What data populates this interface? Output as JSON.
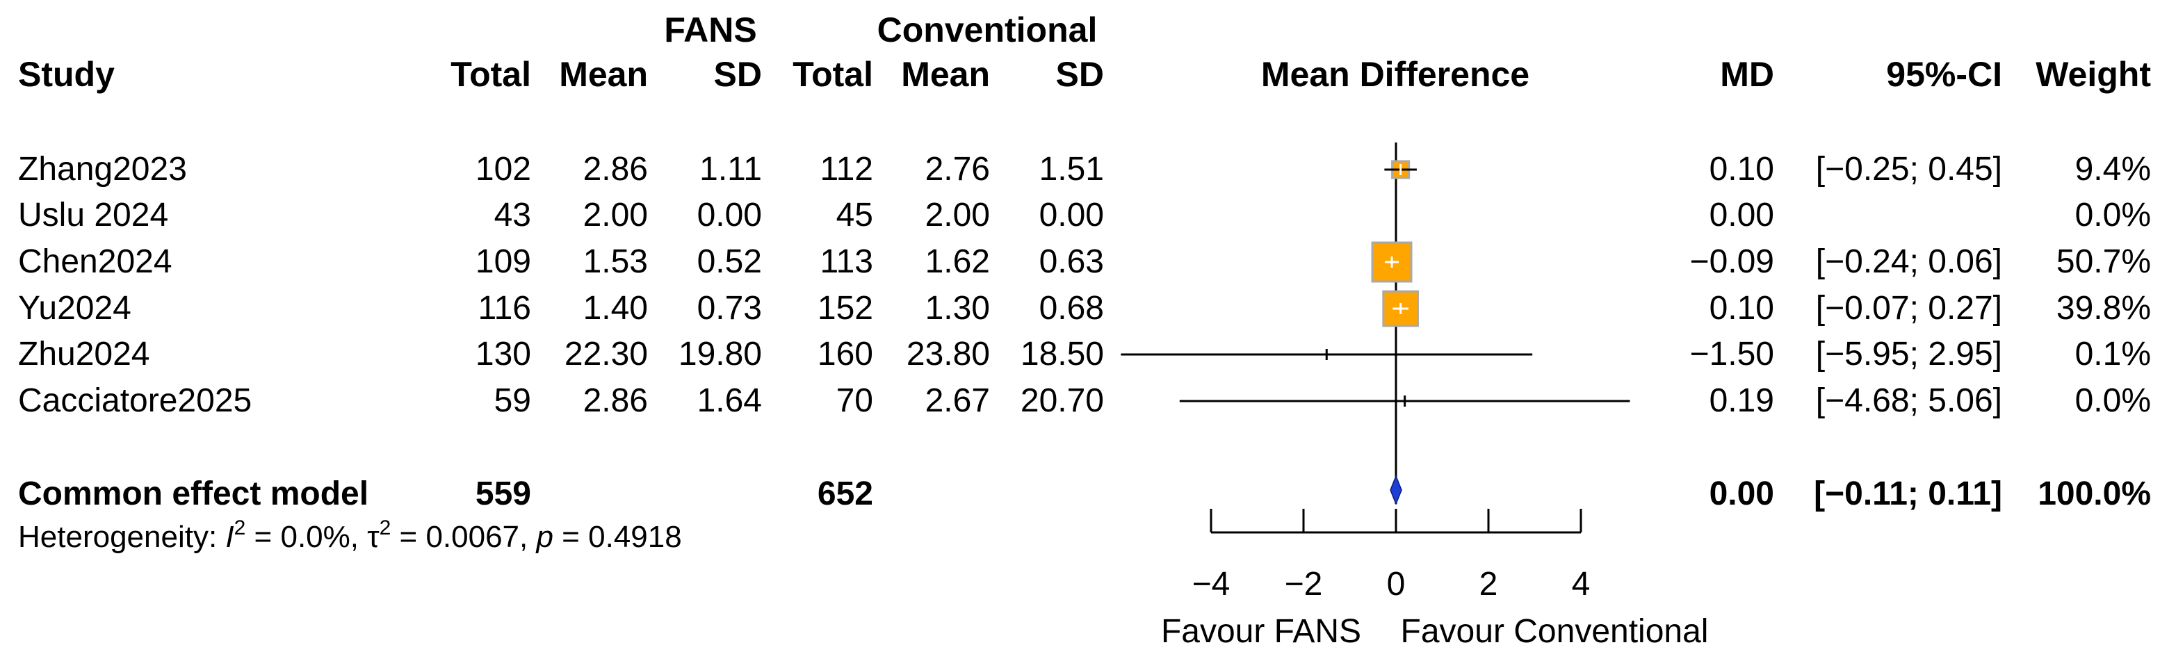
{
  "chart_data": {
    "type": "forest",
    "header": {
      "group1": "FANS",
      "group2": "Conventional",
      "study": "Study",
      "total": "Total",
      "mean": "Mean",
      "sd": "SD",
      "effect": "Mean Difference",
      "md": "MD",
      "ci": "95%-CI",
      "weight": "Weight"
    },
    "studies": [
      {
        "name": "Zhang2023",
        "n1": "102",
        "m1": "2.86",
        "sd1": "1.11",
        "n2": "112",
        "m2": "2.76",
        "sd2": "1.51",
        "md_text": "0.10",
        "ci_text": "[−0.25; 0.45]",
        "weight_text": "9.4%",
        "md": 0.1,
        "lo": -0.25,
        "hi": 0.45,
        "weight": 9.4
      },
      {
        "name": "Uslu 2024",
        "n1": "43",
        "m1": "2.00",
        "sd1": "0.00",
        "n2": "45",
        "m2": "2.00",
        "sd2": "0.00",
        "md_text": "0.00",
        "ci_text": "",
        "weight_text": "0.0%",
        "md": null,
        "lo": null,
        "hi": null,
        "weight": 0.0
      },
      {
        "name": "Chen2024",
        "n1": "109",
        "m1": "1.53",
        "sd1": "0.52",
        "n2": "113",
        "m2": "1.62",
        "sd2": "0.63",
        "md_text": "−0.09",
        "ci_text": "[−0.24; 0.06]",
        "weight_text": "50.7%",
        "md": -0.09,
        "lo": -0.24,
        "hi": 0.06,
        "weight": 50.7
      },
      {
        "name": "Yu2024",
        "n1": "116",
        "m1": "1.40",
        "sd1": "0.73",
        "n2": "152",
        "m2": "1.30",
        "sd2": "0.68",
        "md_text": "0.10",
        "ci_text": "[−0.07; 0.27]",
        "weight_text": "39.8%",
        "md": 0.1,
        "lo": -0.07,
        "hi": 0.27,
        "weight": 39.8
      },
      {
        "name": "Zhu2024",
        "n1": "130",
        "m1": "22.30",
        "sd1": "19.80",
        "n2": "160",
        "m2": "23.80",
        "sd2": "18.50",
        "md_text": "−1.50",
        "ci_text": "[−5.95; 2.95]",
        "weight_text": "0.1%",
        "md": -1.5,
        "lo": -5.95,
        "hi": 2.95,
        "weight": 0.1
      },
      {
        "name": "Cacciatore2025",
        "n1": "59",
        "m1": "2.86",
        "sd1": "1.64",
        "n2": "70",
        "m2": "2.67",
        "sd2": "20.70",
        "md_text": "0.19",
        "ci_text": "[−4.68; 5.06]",
        "weight_text": "0.0%",
        "md": 0.19,
        "lo": -4.68,
        "hi": 5.06,
        "weight": 0.0
      }
    ],
    "pooled": {
      "name": "Common effect model",
      "n1": "559",
      "n2": "652",
      "md_text": "0.00",
      "ci_text": "[−0.11; 0.11]",
      "weight_text": "100.0%",
      "md": 0.0,
      "lo": -0.11,
      "hi": 0.11
    },
    "heterogeneity": {
      "prefix": "Heterogeneity: ",
      "i2_symbol": "I",
      "i2_value": " = 0.0%, ",
      "tau_symbol": "τ",
      "tau_value": " = 0.0067, ",
      "p_symbol": "p",
      "p_value": " = 0.4918",
      "sup": "2"
    },
    "x_axis": {
      "ticks": [
        -4,
        -2,
        0,
        2,
        4
      ],
      "tick_labels": [
        "−4",
        "−2",
        "0",
        "2",
        "4"
      ],
      "range": [
        -4,
        4
      ],
      "label_left": "Favour FANS",
      "label_right": "Favour Conventional"
    },
    "colors": {
      "square_fill": "#FFA500",
      "square_stroke": "#A9A9A9",
      "diamond_fill": "#1C3FD6",
      "line": "#000000"
    }
  }
}
